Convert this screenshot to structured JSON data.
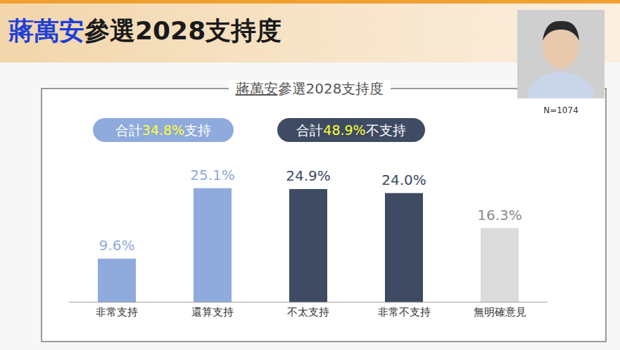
{
  "chart_data": {
    "type": "bar",
    "title": "蔣萬安參選2028支持度",
    "subtitle": "蔣萬安參選2028支持度",
    "annotations": [
      "合計34.8%支持",
      "合計48.9%不支持",
      "N=1074"
    ],
    "categories": [
      "非常支持",
      "還算支持",
      "不太支持",
      "非常不支持",
      "無明確意見"
    ],
    "values": [
      9.6,
      25.1,
      24.9,
      24.0,
      16.3
    ],
    "value_labels": [
      "9.6%",
      "25.1%",
      "24.9%",
      "24.0%",
      "16.3%"
    ],
    "colors": [
      "#8faadc",
      "#8faadc",
      "#3e4b63",
      "#3e4b63",
      "#dcdcdc"
    ],
    "ylim": [
      0,
      30
    ],
    "grid": false,
    "data_labels": true,
    "tick_labels": "x"
  }
}
